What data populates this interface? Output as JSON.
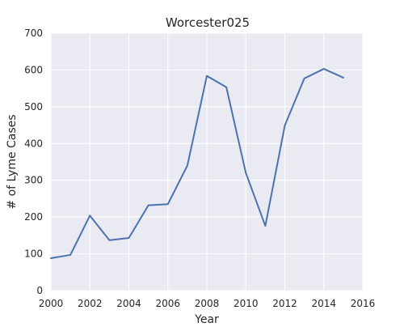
{
  "chart_data": {
    "type": "line",
    "title": "Worcester025",
    "xlabel": "Year",
    "ylabel": "# of Lyme Cases",
    "xlim": [
      2000,
      2016
    ],
    "ylim": [
      0,
      700
    ],
    "xticks": [
      2000,
      2002,
      2004,
      2006,
      2008,
      2010,
      2012,
      2014,
      2016
    ],
    "yticks": [
      0,
      100,
      200,
      300,
      400,
      500,
      600,
      700
    ],
    "grid": true,
    "colors": {
      "background": "#eaeaf2",
      "grid": "#ffffff",
      "line": "#4c72b0"
    },
    "series": [
      {
        "x": [
          2000,
          2001,
          2002,
          2003,
          2004,
          2005,
          2006,
          2007,
          2008,
          2009,
          2010,
          2011,
          2012,
          2013,
          2014,
          2015
        ],
        "y": [
          88,
          97,
          204,
          137,
          143,
          232,
          235,
          340,
          584,
          553,
          320,
          176,
          449,
          577,
          603,
          579
        ]
      }
    ]
  }
}
